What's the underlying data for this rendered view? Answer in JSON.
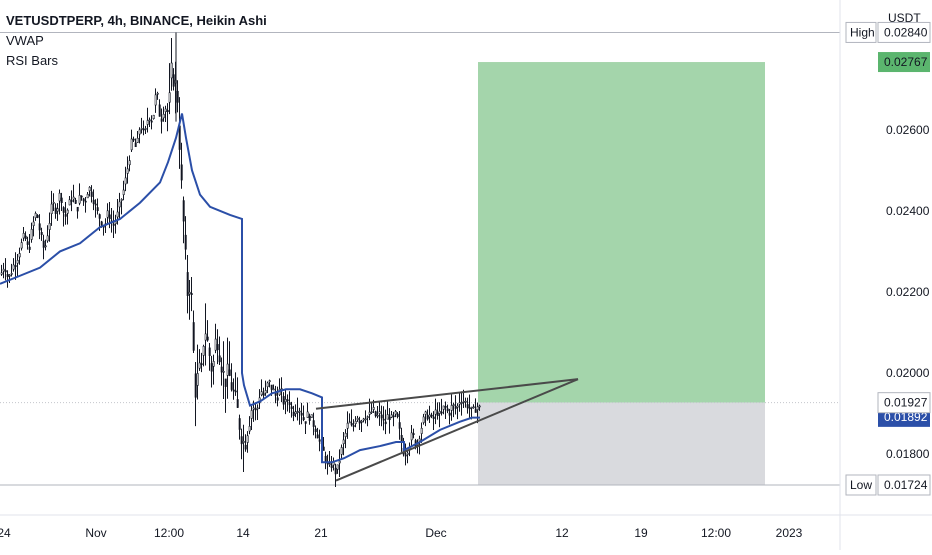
{
  "header": {
    "symbol": "VETUSDTPERP, 4h, BINANCE, Heikin Ashi",
    "indicators": [
      "VWAP",
      "RSI Bars"
    ]
  },
  "currency": "USDT",
  "colors": {
    "candle": "#131722",
    "vwap": "#2b4fa8",
    "target_zone": "#9fd3a7",
    "stop_zone": "#d7d8dc",
    "wedge_line": "#4a4a4a",
    "high_low_line": "#b2b5be",
    "price_tag_green": "#5bb56e",
    "price_tag_vwap": "#2b4fa8"
  },
  "chart_data": {
    "type": "candlestick",
    "style": "Heikin Ashi",
    "timeframe": "4h",
    "exchange": "BINANCE",
    "x_tick_labels": [
      "24",
      "Nov",
      "12:00",
      "14",
      "21",
      "Dec",
      "12",
      "19",
      "12:00",
      "2023"
    ],
    "y_tick_labels": [
      "0.01800",
      "0.02000",
      "0.02200",
      "0.02400",
      "0.02600"
    ],
    "ylim": [
      0.0165,
      0.0292
    ],
    "price_labels": {
      "high": {
        "label": "High",
        "value": "0.02840"
      },
      "low": {
        "label": "Low",
        "value": "0.01724"
      },
      "target": {
        "value": "0.02767"
      },
      "current": {
        "value": "0.01927"
      },
      "vwap": {
        "value": "0.01892"
      }
    },
    "position": {
      "entry": 0.01927,
      "target": 0.02767,
      "stop": 0.01724
    },
    "price_path": [
      [
        0,
        0.0224
      ],
      [
        4,
        0.0227
      ],
      [
        8,
        0.0223
      ],
      [
        12,
        0.0226
      ],
      [
        16,
        0.0228
      ],
      [
        20,
        0.0231
      ],
      [
        24,
        0.0234
      ],
      [
        28,
        0.023
      ],
      [
        32,
        0.0236
      ],
      [
        36,
        0.024
      ],
      [
        40,
        0.0234
      ],
      [
        44,
        0.023
      ],
      [
        48,
        0.0236
      ],
      [
        52,
        0.0242
      ],
      [
        56,
        0.024
      ],
      [
        60,
        0.0245
      ],
      [
        64,
        0.0238
      ],
      [
        68,
        0.0241
      ],
      [
        72,
        0.0244
      ],
      [
        76,
        0.024
      ],
      [
        80,
        0.0244
      ],
      [
        84,
        0.0242
      ],
      [
        88,
        0.0246
      ],
      [
        92,
        0.0244
      ],
      [
        96,
        0.024
      ],
      [
        100,
        0.0238
      ],
      [
        104,
        0.0236
      ],
      [
        108,
        0.024
      ],
      [
        112,
        0.0236
      ],
      [
        116,
        0.0238
      ],
      [
        120,
        0.0242
      ],
      [
        124,
        0.0246
      ],
      [
        128,
        0.0252
      ],
      [
        132,
        0.0258
      ],
      [
        136,
        0.0255
      ],
      [
        140,
        0.0262
      ],
      [
        144,
        0.0258
      ],
      [
        148,
        0.0264
      ],
      [
        152,
        0.0262
      ],
      [
        156,
        0.027
      ],
      [
        160,
        0.0262
      ],
      [
        164,
        0.0266
      ],
      [
        168,
        0.0264
      ],
      [
        170,
        0.027
      ],
      [
        172,
        0.0278
      ],
      [
        174,
        0.0268
      ],
      [
        176,
        0.0274
      ],
      [
        178,
        0.0262
      ],
      [
        180,
        0.0252
      ],
      [
        182,
        0.024
      ],
      [
        184,
        0.0234
      ],
      [
        186,
        0.0222
      ],
      [
        188,
        0.0218
      ],
      [
        190,
        0.0226
      ],
      [
        192,
        0.021
      ],
      [
        194,
        0.02
      ],
      [
        196,
        0.0192
      ],
      [
        198,
        0.0205
      ],
      [
        200,
        0.0196
      ],
      [
        204,
        0.0212
      ],
      [
        208,
        0.0206
      ],
      [
        212,
        0.02
      ],
      [
        216,
        0.021
      ],
      [
        220,
        0.0204
      ],
      [
        224,
        0.0198
      ],
      [
        228,
        0.02
      ],
      [
        232,
        0.0196
      ],
      [
        236,
        0.0192
      ],
      [
        240,
        0.0186
      ],
      [
        244,
        0.0182
      ],
      [
        248,
        0.0188
      ],
      [
        252,
        0.0192
      ],
      [
        256,
        0.019
      ],
      [
        260,
        0.0196
      ],
      [
        264,
        0.0194
      ],
      [
        268,
        0.0198
      ],
      [
        272,
        0.0196
      ],
      [
        276,
        0.0194
      ],
      [
        280,
        0.0196
      ],
      [
        284,
        0.0192
      ],
      [
        288,
        0.0194
      ],
      [
        292,
        0.019
      ],
      [
        296,
        0.0192
      ],
      [
        300,
        0.0191
      ],
      [
        304,
        0.0188
      ],
      [
        308,
        0.019
      ],
      [
        312,
        0.0188
      ],
      [
        316,
        0.0186
      ],
      [
        320,
        0.0182
      ],
      [
        324,
        0.018
      ],
      [
        328,
        0.0176
      ],
      [
        332,
        0.0178
      ],
      [
        336,
        0.0175
      ],
      [
        340,
        0.018
      ],
      [
        344,
        0.0184
      ],
      [
        348,
        0.0188
      ],
      [
        352,
        0.0186
      ],
      [
        356,
        0.019
      ],
      [
        360,
        0.0188
      ],
      [
        364,
        0.019
      ],
      [
        368,
        0.0189
      ],
      [
        372,
        0.0191
      ],
      [
        376,
        0.0189
      ],
      [
        380,
        0.019
      ],
      [
        384,
        0.0187
      ],
      [
        388,
        0.019
      ],
      [
        392,
        0.0188
      ],
      [
        396,
        0.019
      ],
      [
        400,
        0.0184
      ],
      [
        404,
        0.018
      ],
      [
        408,
        0.0182
      ],
      [
        412,
        0.0185
      ],
      [
        416,
        0.0182
      ],
      [
        420,
        0.0186
      ],
      [
        424,
        0.0189
      ],
      [
        428,
        0.019
      ],
      [
        432,
        0.0188
      ],
      [
        436,
        0.0191
      ],
      [
        440,
        0.0189
      ],
      [
        444,
        0.0192
      ],
      [
        448,
        0.019
      ],
      [
        452,
        0.0192
      ],
      [
        456,
        0.0191
      ],
      [
        460,
        0.0194
      ],
      [
        464,
        0.0193
      ],
      [
        468,
        0.0192
      ],
      [
        472,
        0.019
      ],
      [
        476,
        0.0192
      ],
      [
        480,
        0.0191
      ]
    ],
    "vwap_path": [
      [
        0,
        0.0222
      ],
      [
        20,
        0.0224
      ],
      [
        40,
        0.0226
      ],
      [
        60,
        0.023
      ],
      [
        80,
        0.0232
      ],
      [
        100,
        0.0236
      ],
      [
        120,
        0.0238
      ],
      [
        140,
        0.0242
      ],
      [
        160,
        0.0247
      ],
      [
        168,
        0.0252
      ],
      [
        176,
        0.0258
      ],
      [
        182,
        0.0264
      ],
      [
        186,
        0.0258
      ],
      [
        192,
        0.025
      ],
      [
        200,
        0.0244
      ],
      [
        210,
        0.0241
      ],
      [
        230,
        0.0239
      ],
      [
        242,
        0.0238
      ],
      [
        242,
        0.02
      ],
      [
        244,
        0.0197
      ],
      [
        250,
        0.0192
      ],
      [
        260,
        0.0193
      ],
      [
        272,
        0.0195
      ],
      [
        286,
        0.0196
      ],
      [
        300,
        0.0196
      ],
      [
        312,
        0.0195
      ],
      [
        322,
        0.0194
      ],
      [
        322,
        0.0178
      ],
      [
        332,
        0.0178
      ],
      [
        344,
        0.0179
      ],
      [
        360,
        0.0181
      ],
      [
        380,
        0.0182
      ],
      [
        396,
        0.0183
      ],
      [
        404,
        0.0183
      ],
      [
        404,
        0.0181
      ],
      [
        420,
        0.0183
      ],
      [
        440,
        0.0186
      ],
      [
        460,
        0.0188
      ],
      [
        472,
        0.0189
      ],
      [
        480,
        0.0189
      ]
    ],
    "wedge": {
      "upper": [
        [
          316,
          0.01912
        ],
        [
          578,
          0.01985
        ]
      ],
      "lower": [
        [
          336,
          0.01735
        ],
        [
          578,
          0.01985
        ]
      ]
    },
    "grid": false,
    "legend": "top-left"
  }
}
